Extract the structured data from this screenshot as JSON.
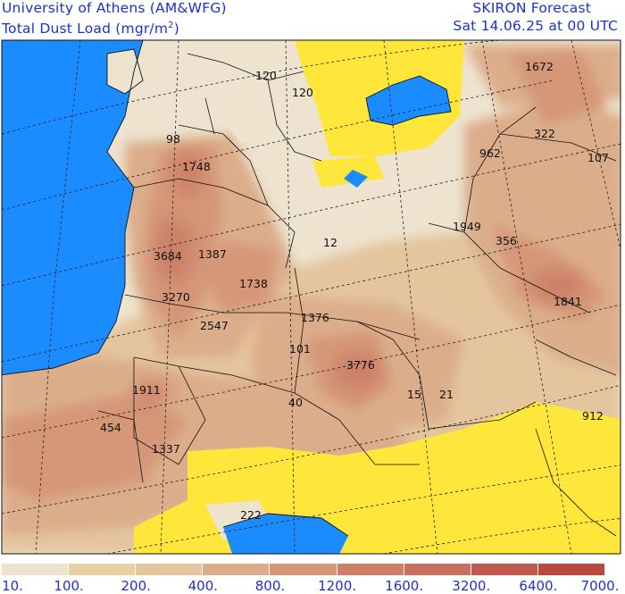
{
  "header": {
    "left_line1": "University of Athens (AM&WFG)",
    "left_line2_prefix": "Total Dust Load (mgr/m",
    "left_line2_sup": "2",
    "left_line2_suffix": ")",
    "right_line1": "SKIRON Forecast",
    "right_line2": "Sat 14.06.25 at 00 UTC"
  },
  "map_labels": [
    {
      "text": "1672"
    },
    {
      "text": "120"
    },
    {
      "text": "120"
    },
    {
      "text": "322"
    },
    {
      "text": "98"
    },
    {
      "text": "962"
    },
    {
      "text": "107"
    },
    {
      "text": "1748"
    },
    {
      "text": "1949"
    },
    {
      "text": "356"
    },
    {
      "text": "12"
    },
    {
      "text": "3684"
    },
    {
      "text": "1387"
    },
    {
      "text": "1738"
    },
    {
      "text": "3270"
    },
    {
      "text": "1841"
    },
    {
      "text": "1376"
    },
    {
      "text": "2547"
    },
    {
      "text": "101"
    },
    {
      "text": "3776"
    },
    {
      "text": "1911"
    },
    {
      "text": "15"
    },
    {
      "text": "21"
    },
    {
      "text": "40"
    },
    {
      "text": "912"
    },
    {
      "text": "454"
    },
    {
      "text": "1337"
    },
    {
      "text": "222"
    }
  ],
  "colorbar": {
    "colors": [
      "#ede3cf",
      "#e9d0a4",
      "#e4c59e",
      "#dcad8a",
      "#d59778",
      "#cc8068",
      "#c76f60",
      "#c05a50",
      "#b9483e"
    ],
    "tick_labels": [
      "10.",
      "100.",
      "200.",
      "400.",
      "800.",
      "1200.",
      "1600.",
      "3200.",
      "6400.",
      "7000."
    ]
  },
  "palette": {
    "sea": "#1a8cff",
    "low_dust_yellow": "#ffe63a",
    "header_text": "#1f2fd0"
  }
}
